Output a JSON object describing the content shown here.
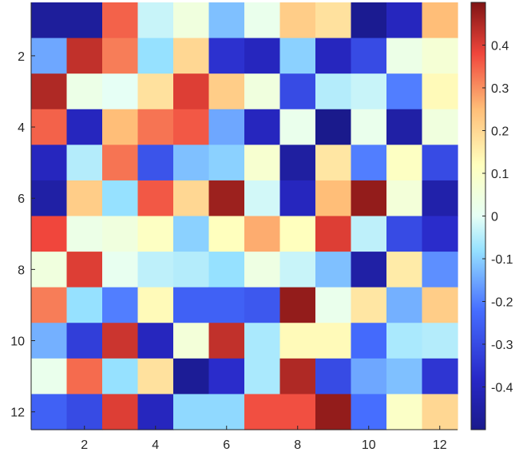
{
  "chart_data": {
    "type": "heatmap",
    "title": "",
    "xlabel": "",
    "ylabel": "",
    "rows": 12,
    "cols": 12,
    "x_ticks": [
      "2",
      "4",
      "6",
      "8",
      "10",
      "12"
    ],
    "y_ticks": [
      "2",
      "4",
      "6",
      "8",
      "10",
      "12"
    ],
    "colorbar": {
      "range": [
        -0.5,
        0.5
      ],
      "tick_values": [
        0.4,
        0.3,
        0.2,
        0.1,
        0,
        -0.1,
        -0.2,
        -0.3,
        -0.4
      ],
      "tick_labels": [
        "0.4",
        "0.3",
        "0.2",
        "0.1",
        "0",
        "-0.1",
        "-0.2",
        "-0.3",
        "-0.4"
      ],
      "colormap": "jet-like"
    },
    "values": [
      [
        -0.47,
        -0.47,
        0.35,
        -0.03,
        0.05,
        -0.12,
        0.02,
        0.22,
        0.18,
        -0.49,
        -0.4,
        0.25
      ],
      [
        -0.15,
        0.43,
        0.32,
        -0.08,
        0.2,
        -0.36,
        -0.4,
        -0.1,
        -0.4,
        -0.3,
        0.03,
        0.07
      ],
      [
        0.45,
        0.03,
        0.0,
        0.18,
        0.4,
        0.22,
        0.05,
        -0.3,
        -0.05,
        -0.03,
        -0.2,
        0.13
      ],
      [
        0.35,
        -0.4,
        0.25,
        0.33,
        0.36,
        -0.15,
        -0.4,
        0.02,
        -0.5,
        0.02,
        -0.45,
        0.05
      ],
      [
        -0.4,
        -0.05,
        0.33,
        -0.28,
        -0.12,
        -0.1,
        0.08,
        -0.46,
        0.17,
        -0.2,
        0.11,
        -0.3
      ],
      [
        -0.45,
        0.22,
        -0.08,
        0.36,
        0.2,
        0.47,
        -0.02,
        -0.4,
        0.25,
        0.48,
        0.06,
        -0.44
      ],
      [
        0.38,
        0.03,
        0.05,
        0.11,
        -0.1,
        0.12,
        0.27,
        0.12,
        0.4,
        -0.04,
        -0.3,
        -0.37
      ],
      [
        0.05,
        0.4,
        0.01,
        -0.04,
        -0.05,
        -0.08,
        0.04,
        -0.03,
        -0.12,
        -0.45,
        0.16,
        -0.18
      ],
      [
        0.32,
        -0.08,
        -0.2,
        0.13,
        -0.25,
        -0.25,
        -0.27,
        0.48,
        0.02,
        0.17,
        -0.14,
        0.22
      ],
      [
        -0.14,
        -0.33,
        0.42,
        -0.4,
        0.06,
        0.43,
        -0.06,
        0.13,
        0.13,
        -0.23,
        -0.06,
        -0.05
      ],
      [
        0.02,
        0.34,
        -0.08,
        0.18,
        -0.48,
        -0.37,
        -0.06,
        0.45,
        -0.3,
        -0.15,
        -0.12,
        -0.35
      ],
      [
        -0.25,
        -0.3,
        0.4,
        -0.4,
        -0.09,
        -0.09,
        0.37,
        0.37,
        0.48,
        -0.22,
        0.1,
        0.2
      ]
    ]
  }
}
